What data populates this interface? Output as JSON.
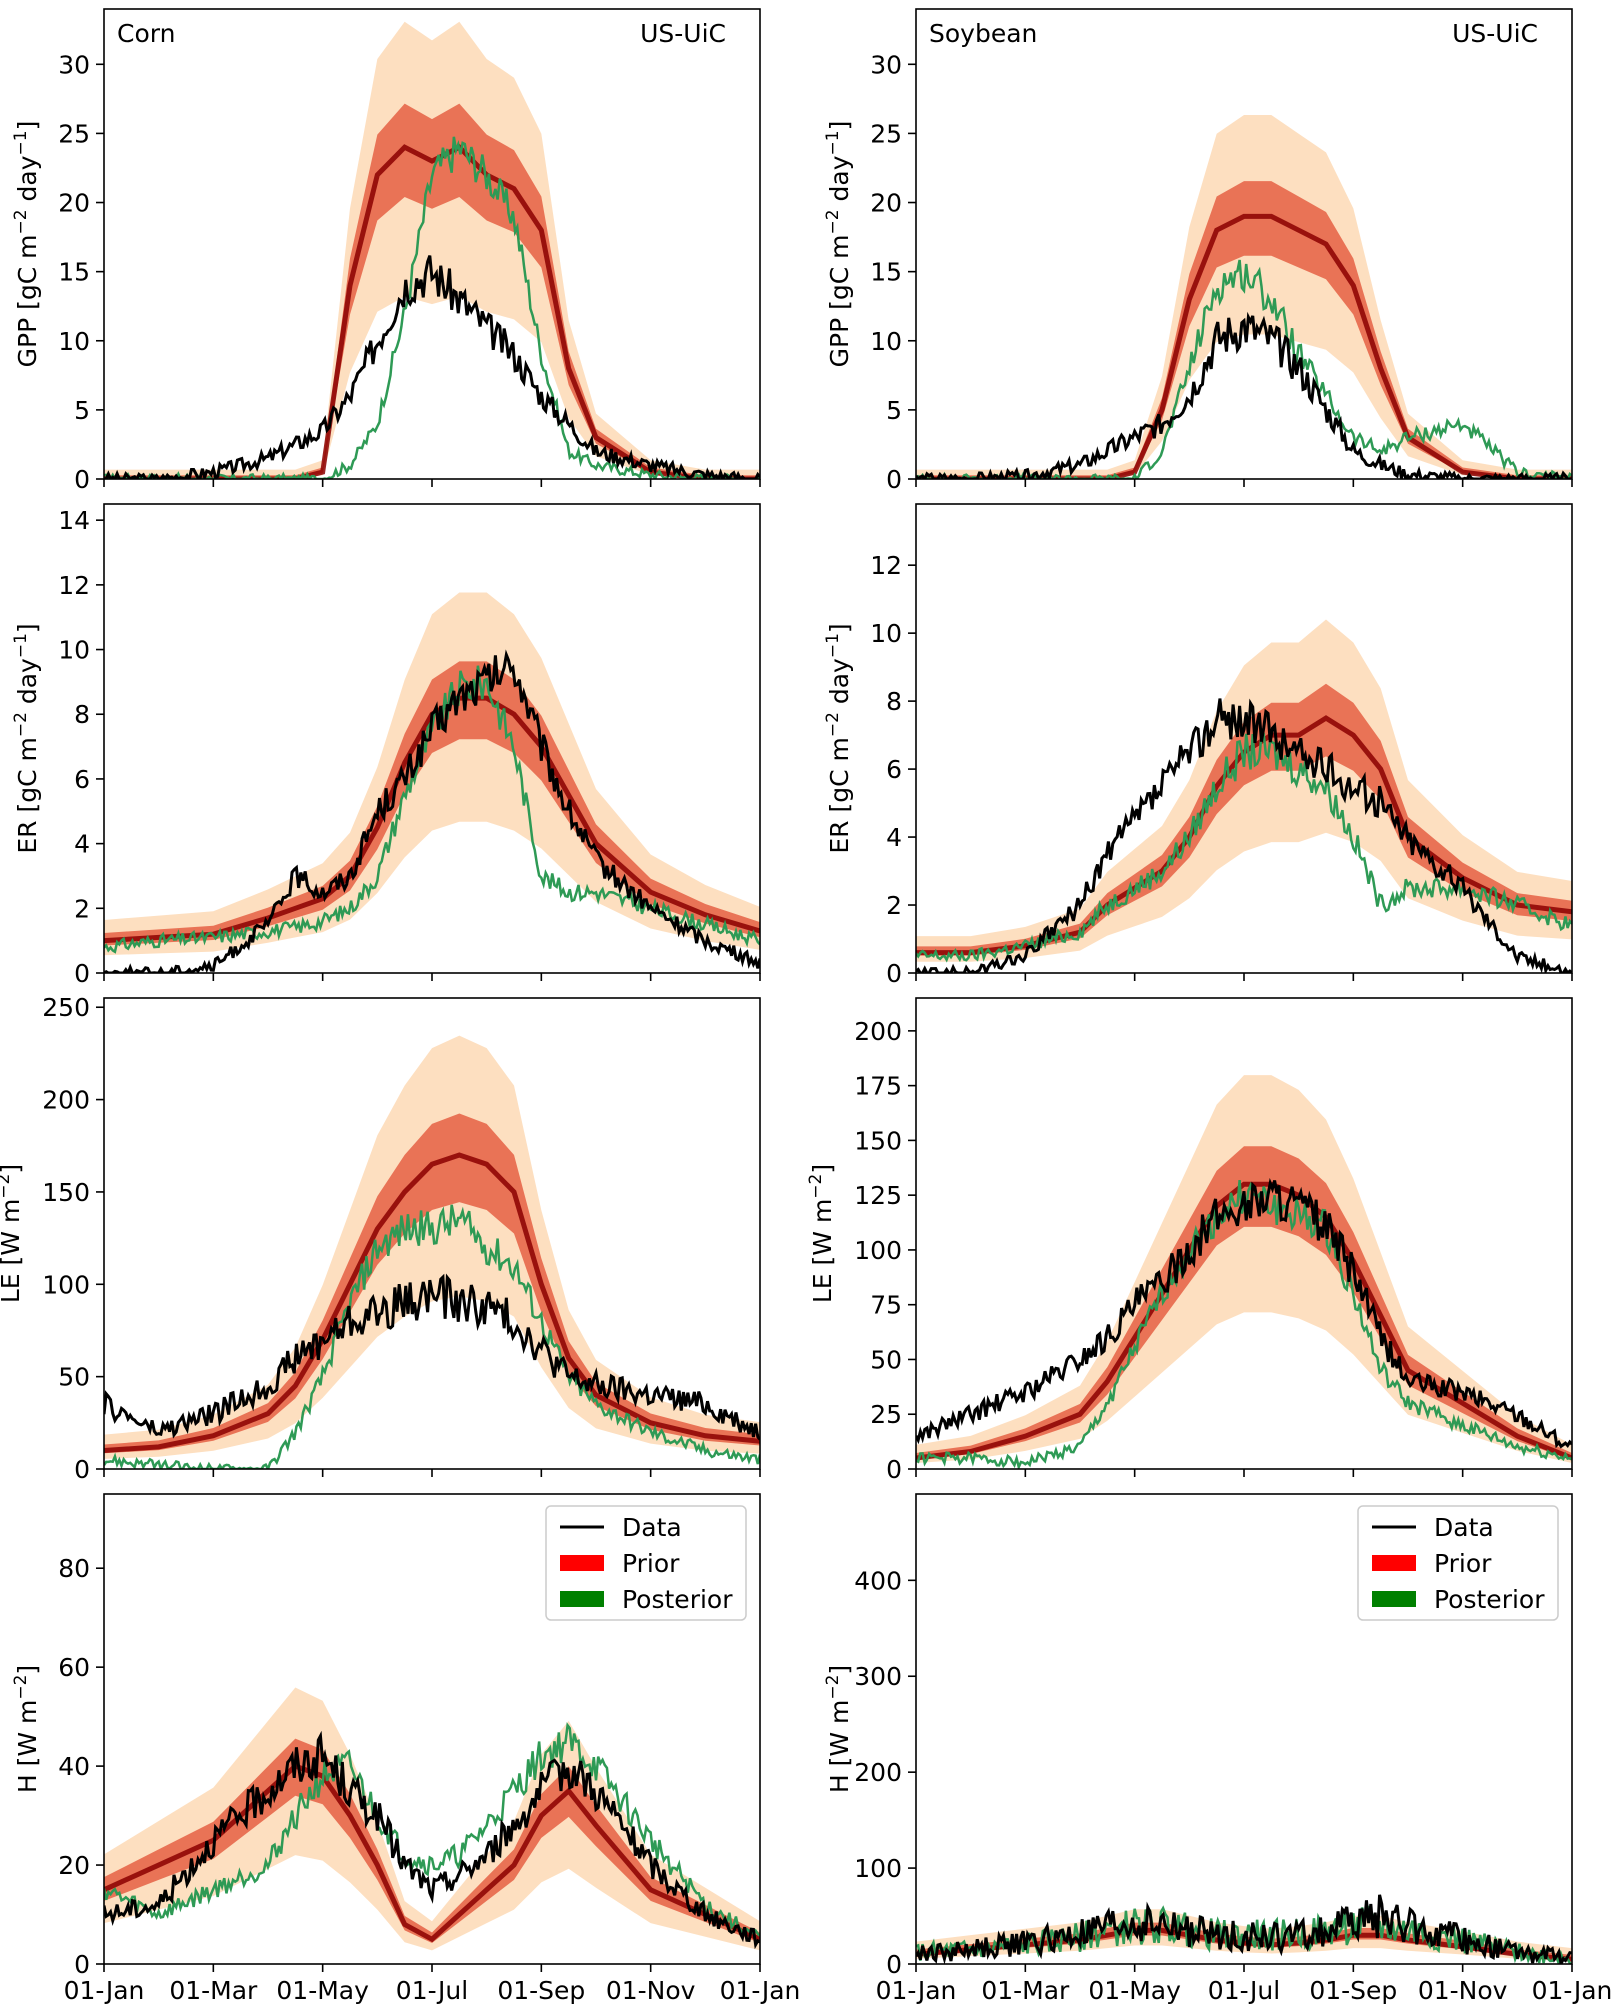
{
  "x_tick_labels": [
    "01-Jan",
    "01-Mar",
    "01-May",
    "01-Jul",
    "01-Sep",
    "01-Nov",
    "01-Jan"
  ],
  "colors": {
    "data": "#000000",
    "prior_dark": "#8b0000",
    "prior_mid": "#e0452a",
    "prior_light": "#fdd9b5",
    "posterior": "#2e9a55",
    "legend_prior": "#ff0000",
    "legend_posterior": "#008000"
  },
  "legend": {
    "data": "Data",
    "prior": "Prior",
    "posterior": "Posterior"
  },
  "chart_data": [
    {
      "type": "line",
      "panel": "corn-gpp",
      "crop_label": "Corn",
      "site_label": "US-UiC",
      "ylabel_main": "GPP [gC m",
      "ylabel_tail": " day",
      "ylabel_sup1": "−2",
      "ylabel_sup2": "−1",
      "ylim": [
        0,
        34
      ],
      "yticks": [
        0,
        5,
        10,
        15,
        20,
        25,
        30
      ],
      "x_months": [
        0,
        1,
        2,
        3,
        3.5,
        4,
        4.5,
        5,
        5.5,
        6,
        6.5,
        7,
        7.5,
        8,
        8.5,
        9,
        10,
        11,
        12
      ],
      "series": [
        {
          "name": "Data",
          "values": [
            0,
            0,
            0.5,
            1.5,
            2.5,
            3.5,
            6,
            10,
            14,
            15,
            13,
            11,
            9,
            6,
            4,
            2,
            1,
            0.3,
            0
          ]
        },
        {
          "name": "Prior",
          "values": [
            0,
            0,
            0,
            0,
            0,
            0.5,
            14,
            22,
            24,
            23,
            24,
            22,
            21,
            18,
            8,
            3,
            0.5,
            0,
            0
          ]
        },
        {
          "name": "Posterior",
          "values": [
            0,
            0,
            0,
            0,
            0,
            0,
            1,
            4,
            12,
            22,
            24,
            22,
            19,
            9,
            2,
            1,
            0.3,
            0,
            0
          ]
        }
      ]
    },
    {
      "type": "line",
      "panel": "soy-gpp",
      "crop_label": "Soybean",
      "site_label": "US-UiC",
      "ylabel_main": "GPP [gC m",
      "ylabel_tail": " day",
      "ylabel_sup1": "−2",
      "ylabel_sup2": "−1",
      "ylim": [
        0,
        34
      ],
      "yticks": [
        0,
        5,
        10,
        15,
        20,
        25,
        30
      ],
      "x_months": [
        0,
        1,
        2,
        3,
        3.5,
        4,
        4.5,
        5,
        5.5,
        6,
        6.5,
        7,
        7.5,
        8,
        8.5,
        9,
        10,
        11,
        12
      ],
      "series": [
        {
          "name": "Data",
          "values": [
            0,
            0,
            0.2,
            1,
            2,
            3,
            4,
            6,
            10,
            11,
            10,
            8,
            5,
            2,
            1,
            0.3,
            0,
            0,
            0
          ]
        },
        {
          "name": "Prior",
          "values": [
            0,
            0,
            0,
            0,
            0,
            0.5,
            5,
            13,
            18,
            19,
            19,
            18,
            17,
            14,
            8,
            3,
            0.5,
            0,
            0
          ]
        },
        {
          "name": "Posterior",
          "values": [
            0,
            0,
            0,
            0,
            0,
            0,
            2,
            8,
            14,
            15,
            13,
            9,
            6,
            3,
            2,
            3,
            4,
            0.5,
            0
          ]
        }
      ]
    },
    {
      "type": "line",
      "panel": "corn-er",
      "ylabel_main": "ER [gC m",
      "ylabel_tail": " day",
      "ylabel_sup1": "−2",
      "ylabel_sup2": "−1",
      "ylim": [
        0,
        14.5
      ],
      "yticks": [
        0,
        2,
        4,
        6,
        8,
        10,
        12,
        14
      ],
      "x_months": [
        0,
        1,
        2,
        3,
        3.5,
        4,
        4.5,
        5,
        5.5,
        6,
        6.5,
        7,
        7.5,
        8,
        8.5,
        9,
        10,
        11,
        12
      ],
      "series": [
        {
          "name": "Data",
          "values": [
            0,
            0,
            0.2,
            1.5,
            3,
            2.5,
            3,
            5,
            6,
            7.5,
            8.5,
            9,
            9.5,
            7,
            5,
            3.5,
            2,
            1,
            0.3
          ]
        },
        {
          "name": "Prior",
          "values": [
            1,
            1.1,
            1.2,
            1.7,
            2,
            2.3,
            3,
            4.5,
            6.5,
            8,
            8.5,
            8.5,
            8,
            7,
            5.5,
            4,
            2.5,
            1.8,
            1.3
          ]
        },
        {
          "name": "Posterior",
          "values": [
            0.8,
            1,
            1.1,
            1.3,
            1.4,
            1.6,
            2,
            3,
            5.5,
            7.5,
            8.8,
            9,
            7,
            3,
            2.5,
            2.5,
            2,
            1.5,
            1
          ]
        }
      ]
    },
    {
      "type": "line",
      "panel": "soy-er",
      "ylabel_main": "ER [gC m",
      "ylabel_tail": " day",
      "ylabel_sup1": "−2",
      "ylabel_sup2": "−1",
      "ylim": [
        0,
        13.8
      ],
      "yticks": [
        0,
        2,
        4,
        6,
        8,
        10,
        12
      ],
      "x_months": [
        0,
        1,
        2,
        3,
        3.5,
        4,
        4.5,
        5,
        5.5,
        6,
        6.5,
        7,
        7.5,
        8,
        8.5,
        9,
        10,
        11,
        12
      ],
      "series": [
        {
          "name": "Data",
          "values": [
            0,
            0,
            0.5,
            2,
            3.5,
            4.5,
            5.5,
            6.5,
            7.5,
            7.5,
            7,
            6.5,
            6,
            5.5,
            5,
            4,
            2.5,
            0.5,
            0
          ]
        },
        {
          "name": "Prior",
          "values": [
            0.6,
            0.6,
            0.8,
            1.2,
            2,
            2.5,
            3,
            4,
            5.5,
            6.5,
            7,
            7,
            7.5,
            7,
            6,
            4,
            2.8,
            2,
            1.8
          ]
        },
        {
          "name": "Posterior",
          "values": [
            0.5,
            0.5,
            0.8,
            1.2,
            2,
            2.5,
            3,
            4,
            5.5,
            6.5,
            6.5,
            6,
            5.5,
            4,
            2,
            2.5,
            2.5,
            2,
            1.4
          ]
        }
      ]
    },
    {
      "type": "line",
      "panel": "corn-le",
      "ylabel_main": "LE [W m",
      "ylabel_tail": "",
      "ylabel_sup1": "−2",
      "ylabel_sup2": "",
      "ylim": [
        0,
        255
      ],
      "yticks": [
        0,
        50,
        100,
        150,
        200,
        250
      ],
      "x_months": [
        0,
        1,
        2,
        3,
        3.5,
        4,
        4.5,
        5,
        5.5,
        6,
        6.5,
        7,
        7.5,
        8,
        8.5,
        9,
        10,
        11,
        12
      ],
      "series": [
        {
          "name": "Data",
          "values": [
            35,
            20,
            30,
            45,
            60,
            70,
            80,
            85,
            90,
            95,
            90,
            88,
            80,
            65,
            50,
            45,
            40,
            35,
            20
          ]
        },
        {
          "name": "Prior",
          "values": [
            10,
            12,
            18,
            30,
            45,
            70,
            100,
            130,
            150,
            165,
            170,
            165,
            150,
            100,
            60,
            40,
            25,
            18,
            15
          ]
        },
        {
          "name": "Posterior",
          "values": [
            5,
            2,
            0,
            0,
            20,
            50,
            90,
            120,
            130,
            130,
            135,
            120,
            110,
            80,
            50,
            35,
            20,
            10,
            5
          ]
        }
      ]
    },
    {
      "type": "line",
      "panel": "soy-le",
      "ylabel_main": "LE [W m",
      "ylabel_tail": "",
      "ylabel_sup1": "−2",
      "ylabel_sup2": "",
      "ylim": [
        0,
        215
      ],
      "yticks": [
        0,
        25,
        50,
        75,
        100,
        125,
        150,
        175,
        200
      ],
      "x_months": [
        0,
        1,
        2,
        3,
        3.5,
        4,
        4.5,
        5,
        5.5,
        6,
        6.5,
        7,
        7.5,
        8,
        8.5,
        9,
        10,
        11,
        12
      ],
      "series": [
        {
          "name": "Data",
          "values": [
            15,
            25,
            35,
            50,
            60,
            75,
            85,
            100,
            115,
            120,
            125,
            120,
            110,
            90,
            60,
            40,
            35,
            25,
            10
          ]
        },
        {
          "name": "Prior",
          "values": [
            5,
            8,
            15,
            25,
            40,
            60,
            80,
            100,
            120,
            130,
            130,
            125,
            115,
            95,
            70,
            45,
            30,
            15,
            5
          ]
        },
        {
          "name": "Posterior",
          "values": [
            5,
            5,
            3,
            10,
            30,
            55,
            80,
            100,
            115,
            125,
            120,
            115,
            110,
            80,
            45,
            30,
            20,
            10,
            5
          ]
        }
      ]
    },
    {
      "type": "line",
      "panel": "corn-h",
      "ylabel_main": "H [W m",
      "ylabel_tail": "",
      "ylabel_sup1": "−2",
      "ylabel_sup2": "",
      "ylim": [
        0,
        95
      ],
      "yticks": [
        0,
        20,
        40,
        60,
        80
      ],
      "x_months": [
        0,
        1,
        2,
        3,
        3.5,
        4,
        4.5,
        5,
        5.5,
        6,
        6.5,
        7,
        7.5,
        8,
        8.5,
        9,
        10,
        11,
        12
      ],
      "series": [
        {
          "name": "Data",
          "values": [
            10,
            12,
            25,
            35,
            40,
            42,
            35,
            30,
            20,
            15,
            18,
            22,
            28,
            35,
            40,
            35,
            20,
            10,
            5
          ]
        },
        {
          "name": "Prior",
          "values": [
            15,
            20,
            25,
            35,
            40,
            38,
            30,
            20,
            8,
            5,
            10,
            15,
            20,
            30,
            35,
            28,
            15,
            10,
            5
          ]
        },
        {
          "name": "Posterior",
          "values": [
            15,
            10,
            15,
            20,
            30,
            38,
            40,
            30,
            22,
            20,
            22,
            28,
            35,
            42,
            45,
            40,
            25,
            12,
            5
          ]
        }
      ]
    },
    {
      "type": "line",
      "panel": "soy-h",
      "ylabel_main": "H [W m",
      "ylabel_tail": "",
      "ylabel_sup1": "−2",
      "ylabel_sup2": "",
      "ylim": [
        0,
        490
      ],
      "yticks": [
        0,
        100,
        200,
        300,
        400
      ],
      "x_months": [
        0,
        1,
        2,
        3,
        3.5,
        4,
        4.5,
        5,
        5.5,
        6,
        6.5,
        7,
        7.5,
        8,
        8.5,
        9,
        10,
        11,
        12
      ],
      "series": [
        {
          "name": "Data",
          "values": [
            10,
            15,
            22,
            30,
            38,
            42,
            40,
            35,
            30,
            30,
            28,
            30,
            35,
            45,
            50,
            40,
            25,
            12,
            5
          ]
        },
        {
          "name": "Prior",
          "values": [
            10,
            15,
            20,
            25,
            30,
            35,
            35,
            30,
            25,
            22,
            20,
            22,
            25,
            30,
            30,
            25,
            18,
            10,
            5
          ]
        },
        {
          "name": "Posterior",
          "values": [
            12,
            15,
            20,
            28,
            35,
            40,
            40,
            35,
            30,
            30,
            30,
            32,
            35,
            40,
            40,
            35,
            25,
            12,
            5
          ]
        }
      ]
    }
  ]
}
